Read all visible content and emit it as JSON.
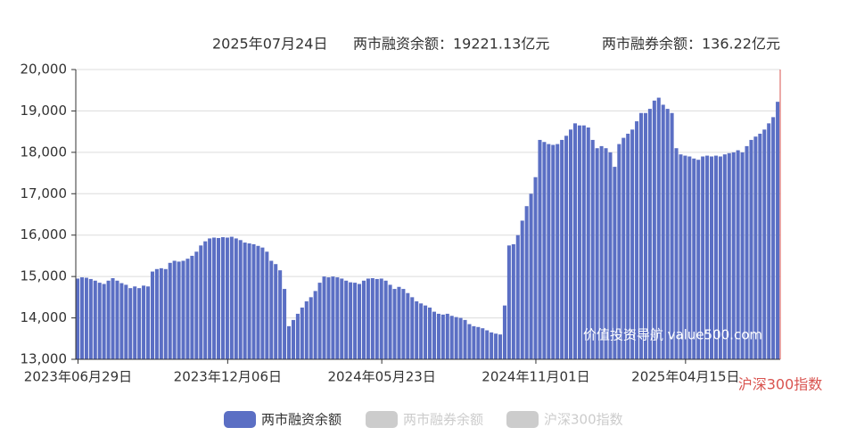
{
  "chart_data": {
    "type": "bar",
    "header": {
      "date": "2025年07月24日",
      "financing": "两市融资余额：19221.13亿元",
      "securities": "两市融券余额：136.22亿元"
    },
    "watermark": "价值投资导航 value500.com",
    "y2_label": "沪深300指数",
    "ylim": [
      13000,
      20000
    ],
    "yticks": [
      {
        "value": 13000,
        "label": "13,000"
      },
      {
        "value": 14000,
        "label": "14,000"
      },
      {
        "value": 15000,
        "label": "15,000"
      },
      {
        "value": 16000,
        "label": "16,000"
      },
      {
        "value": 17000,
        "label": "17,000"
      },
      {
        "value": 18000,
        "label": "18,000"
      },
      {
        "value": 19000,
        "label": "19,000"
      },
      {
        "value": 20000,
        "label": "20,000"
      }
    ],
    "grid": true,
    "categories": [
      "2023年06月29日",
      null,
      null,
      null,
      null,
      null,
      null,
      null,
      null,
      null,
      null,
      null,
      null,
      null,
      null,
      null,
      null,
      null,
      null,
      null,
      null,
      null,
      null,
      null,
      null,
      null,
      null,
      null,
      null,
      null,
      null,
      null,
      null,
      null,
      "2023年12月06日",
      null,
      null,
      null,
      null,
      null,
      null,
      null,
      null,
      null,
      null,
      null,
      null,
      null,
      null,
      null,
      null,
      null,
      null,
      null,
      null,
      null,
      null,
      null,
      null,
      null,
      null,
      null,
      null,
      null,
      null,
      null,
      null,
      null,
      null,
      "2024年05月23日",
      null,
      null,
      null,
      null,
      null,
      null,
      null,
      null,
      null,
      null,
      null,
      null,
      null,
      null,
      null,
      null,
      null,
      null,
      null,
      null,
      null,
      null,
      null,
      null,
      null,
      null,
      null,
      null,
      null,
      null,
      null,
      null,
      null,
      null,
      "2024年11月01日",
      null,
      null,
      null,
      null,
      null,
      null,
      null,
      null,
      null,
      null,
      null,
      null,
      null,
      null,
      null,
      null,
      null,
      null,
      null,
      null,
      null,
      null,
      null,
      null,
      null,
      null,
      null,
      null,
      null,
      null,
      null,
      null,
      null,
      "2025年04月15日",
      null,
      null,
      null,
      null,
      null,
      null,
      null,
      null,
      null,
      null,
      null,
      null,
      null,
      null,
      null,
      null,
      null,
      null,
      null,
      null,
      null
    ],
    "series": [
      {
        "name": "两市融资余额",
        "color": "#5b6fc4",
        "values": [
          14950,
          14980,
          14970,
          14940,
          14900,
          14850,
          14820,
          14900,
          14960,
          14900,
          14840,
          14800,
          14720,
          14760,
          14720,
          14780,
          14760,
          15120,
          15180,
          15200,
          15180,
          15330,
          15380,
          15360,
          15380,
          15430,
          15500,
          15600,
          15750,
          15850,
          15920,
          15940,
          15930,
          15950,
          15940,
          15960,
          15920,
          15880,
          15820,
          15800,
          15780,
          15740,
          15700,
          15600,
          15380,
          15300,
          15150,
          14700,
          13800,
          13950,
          14100,
          14250,
          14400,
          14500,
          14650,
          14850,
          15000,
          14980,
          15000,
          14980,
          14950,
          14900,
          14860,
          14850,
          14820,
          14900,
          14950,
          14960,
          14940,
          14950,
          14900,
          14800,
          14700,
          14750,
          14700,
          14600,
          14500,
          14400,
          14350,
          14300,
          14250,
          14150,
          14100,
          14080,
          14100,
          14050,
          14020,
          14000,
          13950,
          13850,
          13800,
          13780,
          13750,
          13700,
          13650,
          13620,
          13600,
          14300,
          15750,
          15780,
          16000,
          16350,
          16700,
          17000,
          17400,
          18300,
          18250,
          18200,
          18180,
          18200,
          18300,
          18400,
          18550,
          18700,
          18650,
          18650,
          18600,
          18300,
          18100,
          18150,
          18100,
          18000,
          17650,
          18200,
          18350,
          18450,
          18550,
          18750,
          18950,
          18950,
          19050,
          19250,
          19320,
          19150,
          19050,
          18950,
          18100,
          17950,
          17920,
          17900,
          17850,
          17820,
          17900,
          17920,
          17900,
          17920,
          17900,
          17950,
          17980,
          18000,
          18050,
          18000,
          18150,
          18300,
          18380,
          18450,
          18550,
          18700,
          18850,
          19221.13
        ]
      }
    ],
    "legend_hidden": [
      "两市融券余额",
      "沪深300指数"
    ]
  }
}
